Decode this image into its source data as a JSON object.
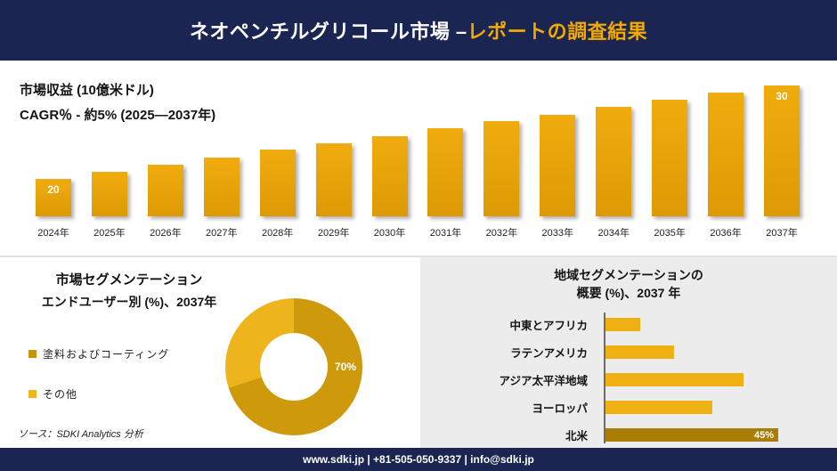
{
  "palette": {
    "navy": "#1A2551",
    "gold": "#F2A900",
    "bar_gold": "#F0AC0E",
    "bar_gold_dark": "#DD9A05",
    "donut_dark": "#CE9A0B",
    "donut_light": "#EDB41C",
    "hbar_gold": "#EFB013",
    "hbar_dark": "#A87E07",
    "panel_gray": "#ECECEC"
  },
  "header": {
    "title_prefix": "ネオペンチルグリコール市場 –",
    "title_accent": "レポートの調査結果"
  },
  "revenue_section": {
    "metric_label": "市場収益 (10億米ドル)",
    "cagr_label": "CAGR％ - 約5% (2025―2037年)"
  },
  "segmentation": {
    "title_line1": "市場セグメンテーション",
    "title_line2": "エンドユーザー別 (%)、2037年",
    "legend": [
      {
        "label": "塗料およびコーティング",
        "color": "#C9920B"
      },
      {
        "label": "その他",
        "color": "#EFB51C"
      }
    ],
    "donut_label": "70%",
    "source": "ソース：SDKI Analytics 分析"
  },
  "regional": {
    "title_line1": "地域セグメンテーションの",
    "title_line2": "概要 (%)、2037 年",
    "value_label": "45%"
  },
  "footer": {
    "contact": "www.sdki.jp | +81-505-050-9337 | info@sdki.jp"
  },
  "chart_data": [
    {
      "type": "bar",
      "title": "市場収益 (10億米ドル)",
      "xlabel": "年",
      "ylabel": "市場収益 (10億米ドル)",
      "categories": [
        "2024年",
        "2025年",
        "2026年",
        "2027年",
        "2028年",
        "2029年",
        "2030年",
        "2031年",
        "2032年",
        "2033年",
        "2034年",
        "2035年",
        "2036年",
        "2037年"
      ],
      "values": [
        20,
        20.8,
        21.5,
        22.3,
        23.1,
        23.8,
        24.6,
        25.4,
        26.2,
        26.9,
        27.7,
        28.5,
        29.2,
        30
      ],
      "data_labels_shown": {
        "2024年": "20",
        "2037年": "30"
      },
      "ylim": [
        16,
        32
      ],
      "grid": false,
      "legend_position": "none",
      "annotation": "CAGR％ - 約5% (2025―2037年)"
    },
    {
      "type": "pie",
      "donut": true,
      "hole_ratio": 0.5,
      "title": "市場セグメンテーション エンドユーザー別 (%)、2037年",
      "labels": [
        "塗料およびコーティング",
        "その他"
      ],
      "values": [
        70,
        30
      ],
      "data_labels_shown": {
        "塗料およびコーティング": "70%"
      },
      "legend_position": "left"
    },
    {
      "type": "bar",
      "orientation": "horizontal",
      "title": "地域セグメンテーションの概要 (%)、2037 年",
      "categories": [
        "中東とアフリカ",
        "ラテンアメリカ",
        "アジア太平洋地域",
        "ヨーロッパ",
        "北米"
      ],
      "values": [
        9,
        18,
        36,
        28,
        45
      ],
      "data_labels_shown": {
        "北米": "45%"
      },
      "xlim": [
        0,
        50
      ],
      "grid": false,
      "legend_position": "none"
    }
  ]
}
